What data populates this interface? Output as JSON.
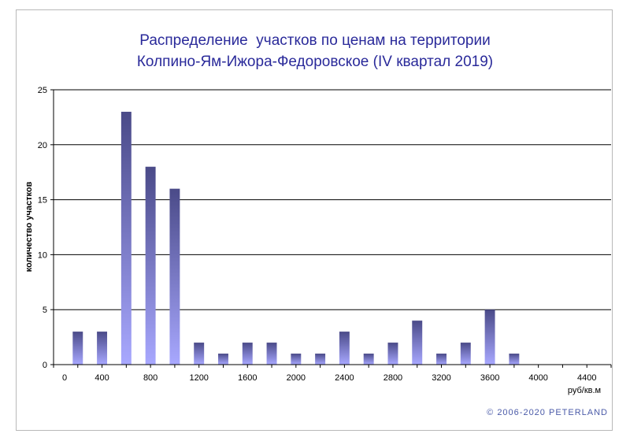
{
  "chart_data": {
    "type": "bar",
    "title_lines": [
      "Распределение  участков по ценам на территории",
      "Колпино-Ям-Ижора-Федоровское (IV квартал 2019)"
    ],
    "xlabel": "руб/кв.м",
    "ylabel": "количество участков",
    "ylim": [
      0,
      25
    ],
    "yticks": [
      0,
      5,
      10,
      15,
      20,
      25
    ],
    "xticks": [
      0,
      400,
      800,
      1200,
      1600,
      2000,
      2400,
      2800,
      3200,
      3600,
      4000,
      4400
    ],
    "xlim": [
      0,
      4600
    ],
    "grid": true,
    "bar_x": [
      200,
      400,
      600,
      800,
      1000,
      1200,
      1400,
      1600,
      1800,
      2000,
      2200,
      2400,
      2600,
      2800,
      3000,
      3200,
      3400,
      3600,
      3800
    ],
    "values": [
      3,
      3,
      23,
      18,
      16,
      2,
      1,
      2,
      2,
      1,
      1,
      3,
      1,
      2,
      4,
      1,
      2,
      5,
      1
    ],
    "colors": {
      "bar_top": "#4a4a88",
      "bar_bottom": "#a8a8ff",
      "title": "#2a2a9a",
      "grid": "#000000"
    }
  },
  "footer": {
    "copyright": "© 2006-2020  PETERLAND"
  }
}
